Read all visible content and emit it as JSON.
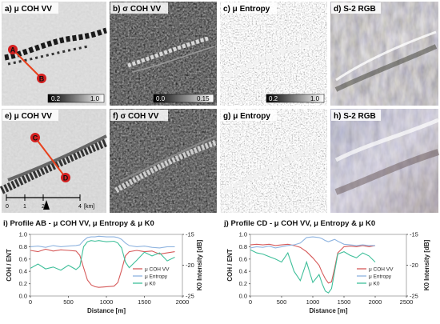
{
  "tiles": [
    {
      "label": "a) μ COH VV",
      "colorbar": {
        "min": "0.2",
        "max": "1.0"
      }
    },
    {
      "label": "b) σ COH VV",
      "colorbar": {
        "min": "0.0",
        "max": "0.15"
      }
    },
    {
      "label": "c) μ Entropy",
      "colorbar": {
        "min": "0.2",
        "max": "1.0"
      }
    },
    {
      "label": "d) S-2 RGB"
    },
    {
      "label": "e) μ COH VV"
    },
    {
      "label": "f) σ COH VV"
    },
    {
      "label": "g) μ Entropy"
    },
    {
      "label": "h) S-2 RGB"
    }
  ],
  "profile_points": {
    "a": "A",
    "b": "B",
    "c": "C",
    "d": "D"
  },
  "scalebar": {
    "ticks": [
      "0",
      "1",
      "2",
      "4"
    ],
    "unit": "[km]"
  },
  "accent_colors": {
    "profile_line": "#e8401c",
    "point_fill": "#d42020",
    "coh": "#d65a5a",
    "entropy": "#8fb4e0",
    "k0": "#3fbf9a"
  },
  "chart_data": [
    {
      "type": "line",
      "title": "i) Profile AB - μ COH VV,  μ Entropy & μ K0",
      "xlabel": "Distance [m]",
      "ylabel": "COH / ENT",
      "y2label": "K0 Intensity [dB]",
      "xlim": [
        0,
        2000
      ],
      "ylim": [
        0.0,
        1.0
      ],
      "y2lim": [
        -25,
        -15
      ],
      "xticks": [
        "0",
        "500",
        "1000",
        "1500",
        "2000"
      ],
      "yticks": [
        "0.0",
        "0.2",
        "0.4",
        "0.6",
        "0.8",
        "1.0"
      ],
      "y2ticks": [
        "-15",
        "-20",
        "-25"
      ],
      "grid": false,
      "legend_position": "right",
      "series": [
        {
          "name": "μ COH VV",
          "axis": "left",
          "x": [
            0,
            100,
            200,
            300,
            400,
            500,
            600,
            650,
            700,
            750,
            800,
            850,
            900,
            1000,
            1100,
            1150,
            1200,
            1250,
            1300,
            1400,
            1500,
            1600,
            1700,
            1800,
            1900
          ],
          "values": [
            0.74,
            0.72,
            0.76,
            0.73,
            0.75,
            0.74,
            0.73,
            0.66,
            0.46,
            0.26,
            0.18,
            0.15,
            0.14,
            0.15,
            0.16,
            0.22,
            0.42,
            0.65,
            0.72,
            0.74,
            0.72,
            0.73,
            0.68,
            0.7,
            0.72
          ]
        },
        {
          "name": "μ Entropy",
          "axis": "left",
          "x": [
            0,
            100,
            200,
            300,
            400,
            500,
            600,
            650,
            700,
            750,
            800,
            850,
            900,
            1000,
            1100,
            1150,
            1200,
            1250,
            1300,
            1400,
            1500,
            1600,
            1700,
            1800,
            1900
          ],
          "values": [
            0.8,
            0.81,
            0.79,
            0.82,
            0.8,
            0.81,
            0.82,
            0.83,
            0.9,
            0.95,
            0.96,
            0.96,
            0.97,
            0.96,
            0.96,
            0.95,
            0.92,
            0.86,
            0.82,
            0.8,
            0.81,
            0.79,
            0.78,
            0.8,
            0.8
          ]
        },
        {
          "name": "μ K0",
          "axis": "right",
          "x": [
            0,
            100,
            200,
            300,
            400,
            500,
            600,
            650,
            700,
            750,
            800,
            850,
            900,
            1000,
            1100,
            1150,
            1200,
            1250,
            1300,
            1400,
            1500,
            1600,
            1700,
            1800,
            1900
          ],
          "values": [
            -20.5,
            -19.8,
            -20.6,
            -20.3,
            -20.8,
            -20.0,
            -20.7,
            -20.2,
            -17.0,
            -16.2,
            -16.0,
            -16.1,
            -16.0,
            -16.2,
            -16.1,
            -16.4,
            -17.2,
            -19.5,
            -20.4,
            -19.2,
            -17.9,
            -18.5,
            -18.0,
            -19.3,
            -18.7
          ]
        }
      ]
    },
    {
      "type": "line",
      "title": "j) Profile CD - μ COH VV,  μ Entropy & μ K0",
      "xlabel": "Distance [m]",
      "ylabel": "COH / ENT",
      "y2label": "K0 Intensity [dB]",
      "xlim": [
        0,
        2500
      ],
      "ylim": [
        0.0,
        1.0
      ],
      "y2lim": [
        -25,
        -15
      ],
      "xticks": [
        "0",
        "500",
        "1000",
        "1500",
        "2000",
        "2500"
      ],
      "yticks": [
        "0.0",
        "0.2",
        "0.4",
        "0.6",
        "0.8",
        "1.0"
      ],
      "y2ticks": [
        "-15",
        "-20",
        "-25"
      ],
      "grid": false,
      "legend_position": "right",
      "series": [
        {
          "name": "μ COH VV",
          "axis": "left",
          "x": [
            0,
            100,
            200,
            300,
            400,
            500,
            600,
            700,
            800,
            900,
            1000,
            1100,
            1150,
            1200,
            1250,
            1300,
            1350,
            1400,
            1500,
            1600,
            1700,
            1800,
            1900,
            2000
          ],
          "values": [
            0.83,
            0.84,
            0.83,
            0.84,
            0.82,
            0.83,
            0.84,
            0.82,
            0.79,
            0.72,
            0.62,
            0.5,
            0.38,
            0.28,
            0.21,
            0.23,
            0.45,
            0.7,
            0.8,
            0.81,
            0.8,
            0.82,
            0.8,
            0.82
          ]
        },
        {
          "name": "μ Entropy",
          "axis": "left",
          "x": [
            0,
            100,
            200,
            300,
            400,
            500,
            600,
            700,
            800,
            900,
            1000,
            1100,
            1150,
            1200,
            1250,
            1300,
            1350,
            1400,
            1500,
            1600,
            1700,
            1800,
            1900,
            2000
          ],
          "values": [
            0.78,
            0.8,
            0.79,
            0.81,
            0.78,
            0.8,
            0.82,
            0.83,
            0.86,
            0.95,
            0.96,
            0.95,
            0.93,
            0.9,
            0.88,
            0.9,
            0.92,
            0.89,
            0.84,
            0.83,
            0.82,
            0.83,
            0.82,
            0.82
          ]
        },
        {
          "name": "μ K0",
          "axis": "right",
          "x": [
            0,
            100,
            200,
            300,
            400,
            500,
            600,
            700,
            800,
            900,
            1000,
            1100,
            1150,
            1200,
            1250,
            1300,
            1350,
            1400,
            1500,
            1600,
            1700,
            1800,
            1900,
            2000
          ],
          "values": [
            -17.5,
            -18.0,
            -18.2,
            -18.6,
            -19.0,
            -19.5,
            -18.0,
            -21.0,
            -22.5,
            -19.5,
            -22.8,
            -21.5,
            -23.0,
            -24.2,
            -24.5,
            -23.8,
            -21.0,
            -18.2,
            -17.8,
            -18.4,
            -18.8,
            -18.0,
            -18.5,
            -19.5
          ]
        }
      ]
    }
  ]
}
